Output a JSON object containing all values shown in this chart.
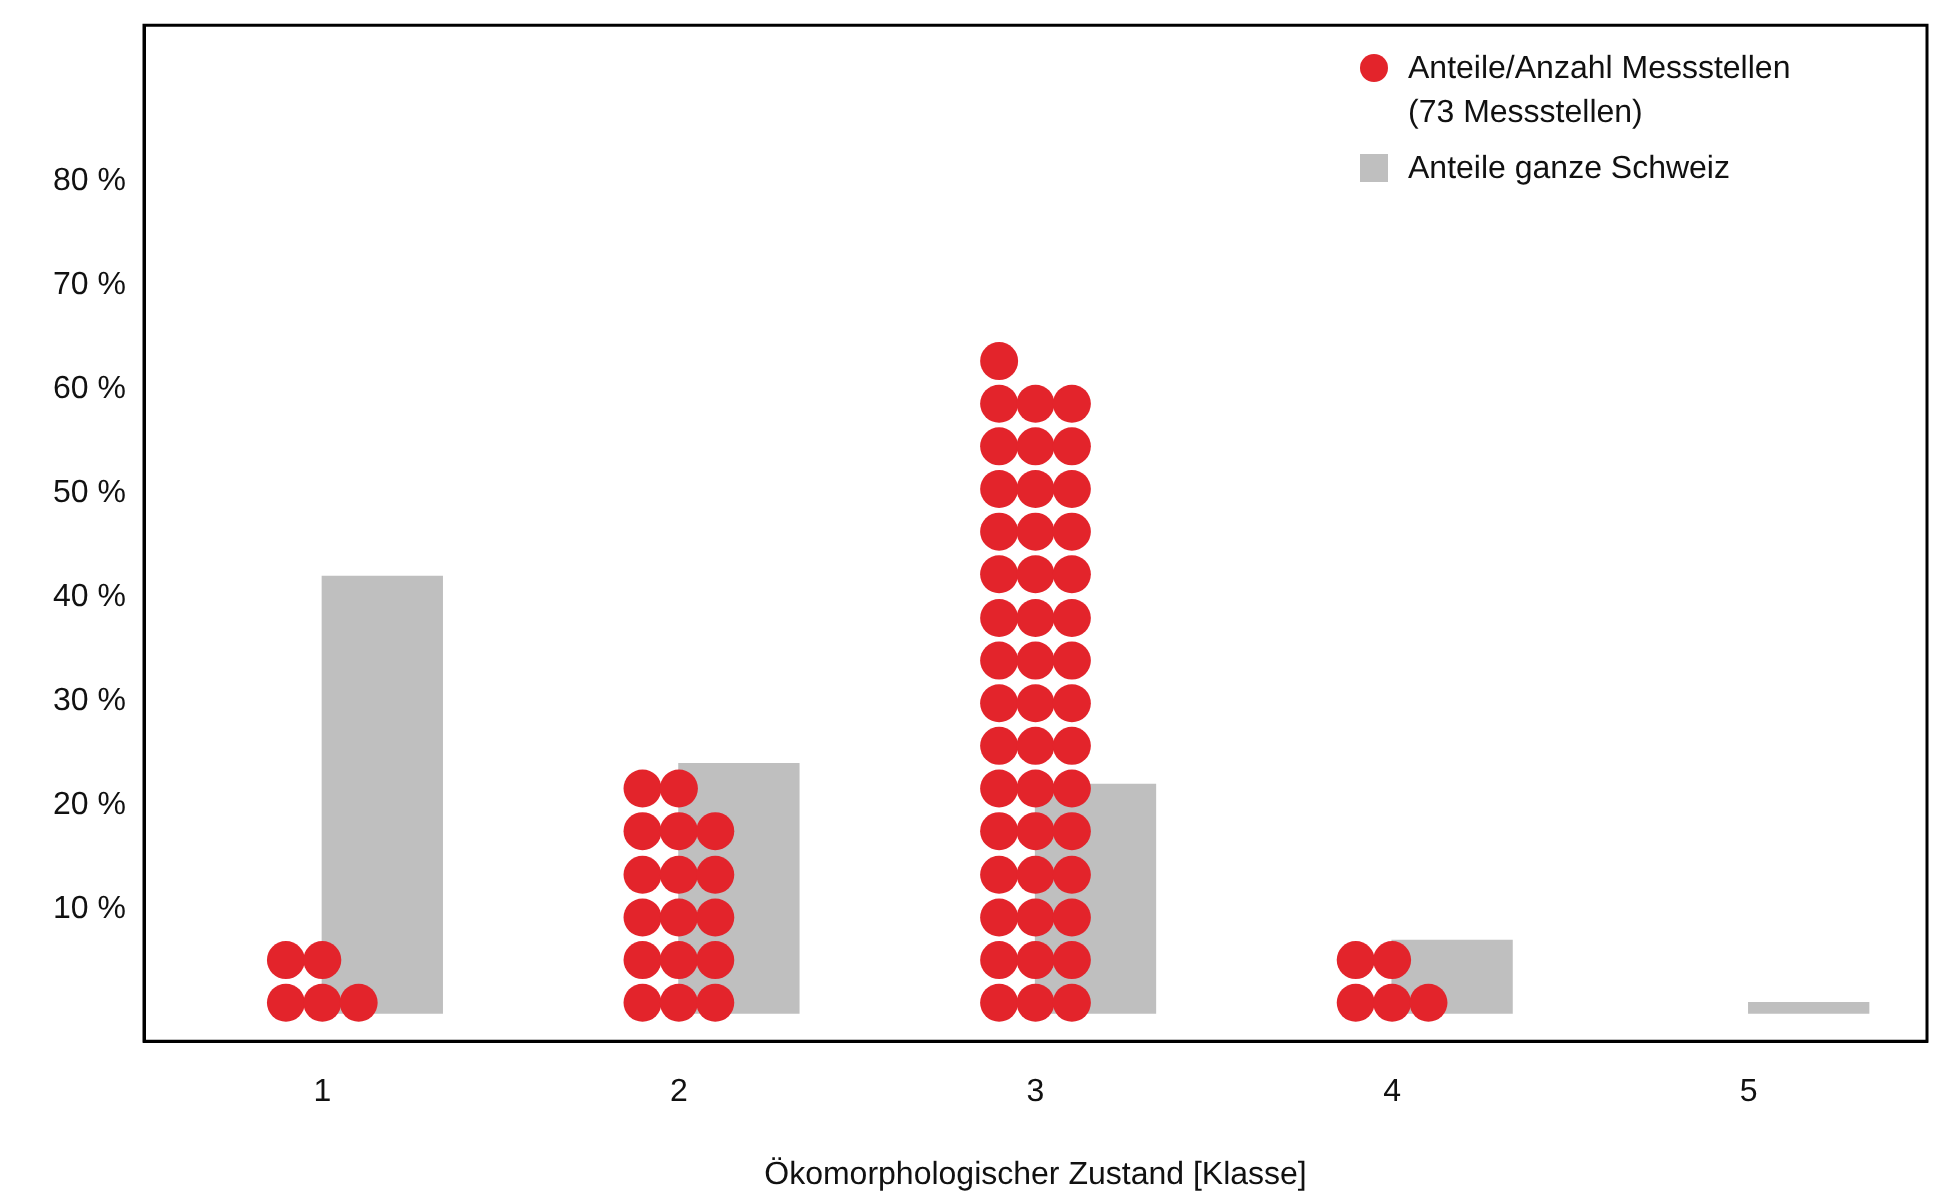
{
  "chart_data": {
    "type": "bar",
    "categories": [
      "1",
      "2",
      "3",
      "4",
      "5"
    ],
    "xlabel": "Ökomorphologischer Zustand [Klasse]",
    "ylim": [
      -2.7,
      95
    ],
    "yticks": [
      {
        "value": 10,
        "label": "10 %"
      },
      {
        "value": 20,
        "label": "20 %"
      },
      {
        "value": 30,
        "label": "30 %"
      },
      {
        "value": 40,
        "label": "40 %"
      },
      {
        "value": 50,
        "label": "50 %"
      },
      {
        "value": 60,
        "label": "60 %"
      },
      {
        "value": 70,
        "label": "70 %"
      },
      {
        "value": 80,
        "label": "80 %"
      }
    ],
    "grid": false,
    "legend": "top right",
    "marker": "circle",
    "series": [
      {
        "name": "Anteile/Anzahl Messstellen (73 Messstellen)",
        "type": "scatter",
        "color": "#e3242b",
        "x": [
          "1",
          "1",
          "1",
          "1",
          "1",
          "2",
          "2",
          "2",
          "2",
          "2",
          "2",
          "2",
          "2",
          "2",
          "2",
          "2",
          "2",
          "2",
          "2",
          "2",
          "2",
          "2",
          "3",
          "3",
          "3",
          "3",
          "3",
          "3",
          "3",
          "3",
          "3",
          "3",
          "3",
          "3",
          "3",
          "3",
          "3",
          "3",
          "3",
          "3",
          "3",
          "3",
          "3",
          "3",
          "3",
          "3",
          "3",
          "3",
          "3",
          "3",
          "3",
          "3",
          "3",
          "3",
          "3",
          "3",
          "3",
          "3",
          "3",
          "3",
          "3",
          "3",
          "3",
          "3",
          "3",
          "3",
          "3",
          "3",
          "4",
          "4",
          "4",
          "4",
          "4"
        ],
        "values": [
          1.0,
          1.0,
          1.0,
          5.1,
          5.1,
          1.0,
          1.0,
          1.0,
          5.1,
          5.1,
          5.1,
          9.2,
          9.2,
          9.2,
          13.3,
          13.3,
          13.3,
          17.5,
          17.5,
          17.5,
          21.6,
          21.6,
          1.0,
          1.0,
          1.0,
          5.1,
          5.1,
          5.1,
          9.2,
          9.2,
          9.2,
          13.3,
          13.3,
          13.3,
          17.5,
          17.5,
          17.5,
          21.6,
          21.6,
          21.6,
          25.7,
          25.7,
          25.7,
          29.8,
          29.8,
          29.8,
          33.9,
          33.9,
          33.9,
          38.0,
          38.0,
          38.0,
          42.2,
          42.2,
          42.2,
          46.3,
          46.3,
          46.3,
          50.4,
          50.4,
          50.4,
          54.5,
          54.5,
          54.5,
          58.6,
          58.6,
          58.6,
          62.7,
          1.0,
          1.0,
          1.0,
          5.1,
          5.1
        ]
      },
      {
        "name": "Anteile ganze Schweiz",
        "color": "#bfbfbf",
        "values": [
          42,
          24,
          22,
          7,
          1
        ]
      }
    ]
  }
}
